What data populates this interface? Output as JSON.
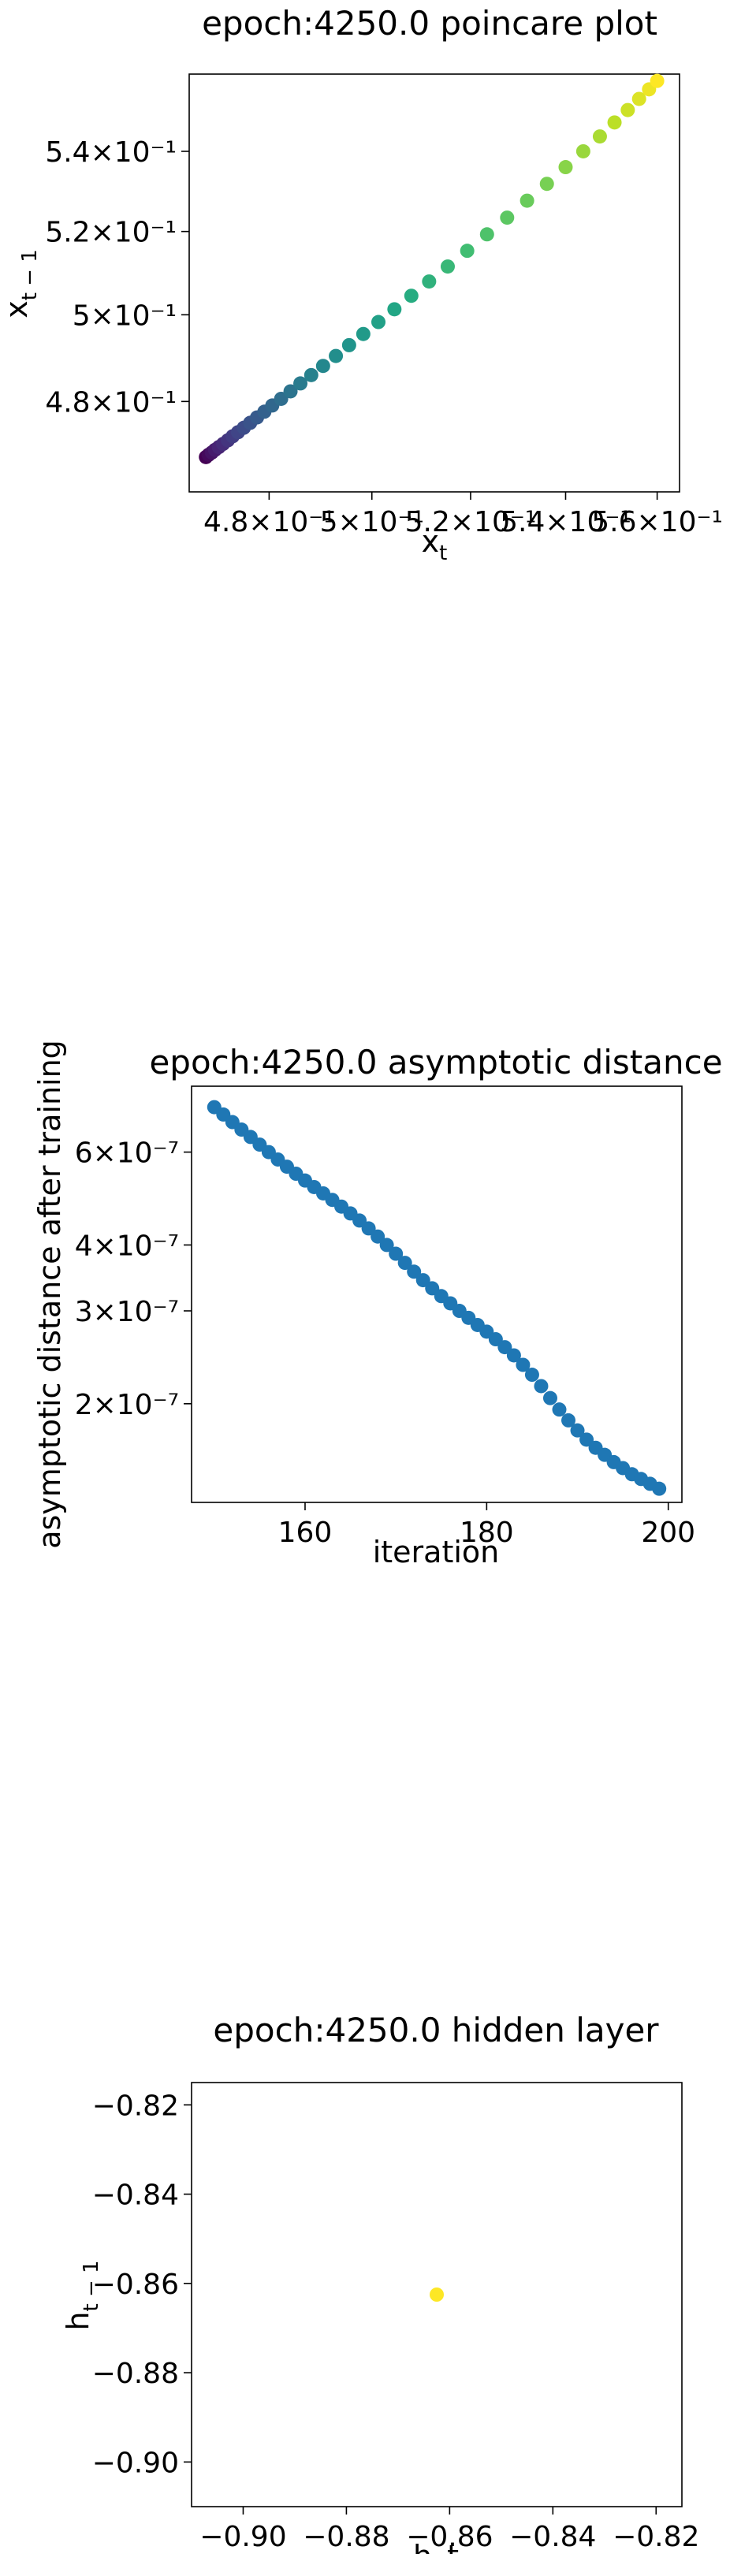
{
  "chart_data": [
    {
      "type": "scatter",
      "title": "epoch:4250.0 poincare plot",
      "xlabel": "x_t",
      "ylabel": "x_{t-1}",
      "xscale": "log",
      "yscale": "log",
      "xlim": [
        0.465,
        0.565
      ],
      "ylim": [
        0.46,
        0.56
      ],
      "xticks": [
        {
          "value": 0.48,
          "label": "4.8×10⁻¹"
        },
        {
          "value": 0.5,
          "label": "5×10⁻¹"
        },
        {
          "value": 0.52,
          "label": "5.2×10⁻¹"
        },
        {
          "value": 0.54,
          "label": "5.4×10⁻¹"
        },
        {
          "value": 0.56,
          "label": "5.6×10⁻¹"
        }
      ],
      "yticks": [
        {
          "value": 0.48,
          "label": "4.8×10⁻¹"
        },
        {
          "value": 0.5,
          "label": "5×10⁻¹"
        },
        {
          "value": 0.52,
          "label": "5.2×10⁻¹"
        },
        {
          "value": 0.54,
          "label": "5.4×10⁻¹"
        }
      ],
      "colormap": "viridis",
      "x": [
        0.4681,
        0.4686,
        0.4692,
        0.4698,
        0.4705,
        0.4713,
        0.4722,
        0.4731,
        0.4741,
        0.4752,
        0.4764,
        0.4777,
        0.4791,
        0.4806,
        0.4823,
        0.4841,
        0.486,
        0.4881,
        0.4904,
        0.4929,
        0.4955,
        0.4983,
        0.5013,
        0.5045,
        0.5079,
        0.5115,
        0.5153,
        0.5193,
        0.5234,
        0.5276,
        0.5318,
        0.536,
        0.54,
        0.5438,
        0.5474,
        0.5506,
        0.5535,
        0.556,
        0.5582,
        0.56
      ],
      "y": [
        0.4676,
        0.4681,
        0.4686,
        0.4692,
        0.4698,
        0.4705,
        0.4713,
        0.4722,
        0.4731,
        0.4741,
        0.4752,
        0.4764,
        0.4777,
        0.4791,
        0.4806,
        0.4823,
        0.4841,
        0.486,
        0.4881,
        0.4904,
        0.4929,
        0.4955,
        0.4983,
        0.5013,
        0.5045,
        0.5079,
        0.5115,
        0.5153,
        0.5193,
        0.5234,
        0.5276,
        0.5318,
        0.536,
        0.54,
        0.5438,
        0.5474,
        0.5506,
        0.5535,
        0.556,
        0.5582
      ]
    },
    {
      "type": "scatter",
      "title": "epoch:4250.0 asymptotic distance",
      "xlabel": "iteration",
      "ylabel": "asymptotic distance after training",
      "yscale": "log",
      "xlim": [
        147.5,
        201.5
      ],
      "ylim": [
        1.3e-07,
        8e-07
      ],
      "xticks": [
        {
          "value": 160,
          "label": "160"
        },
        {
          "value": 180,
          "label": "180"
        },
        {
          "value": 200,
          "label": "200"
        }
      ],
      "yticks": [
        {
          "value": 2e-07,
          "label": "2×10⁻⁷"
        },
        {
          "value": 3e-07,
          "label": "3×10⁻⁷"
        },
        {
          "value": 4e-07,
          "label": "4×10⁻⁷"
        },
        {
          "value": 6e-07,
          "label": "6×10⁻⁷"
        }
      ],
      "color": "#1f77b4",
      "x": [
        150,
        151,
        152,
        153,
        154,
        155,
        156,
        157,
        158,
        159,
        160,
        161,
        162,
        163,
        164,
        165,
        166,
        167,
        168,
        169,
        170,
        171,
        172,
        173,
        174,
        175,
        176,
        177,
        178,
        179,
        180,
        181,
        182,
        183,
        184,
        185,
        186,
        187,
        188,
        189,
        190,
        191,
        192,
        193,
        194,
        195,
        196,
        197,
        198,
        199
      ],
      "y": [
        7.3e-07,
        7.07e-07,
        6.84e-07,
        6.62e-07,
        6.41e-07,
        6.2e-07,
        6e-07,
        5.81e-07,
        5.63e-07,
        5.46e-07,
        5.3e-07,
        5.15e-07,
        5.01e-07,
        4.87e-07,
        4.73e-07,
        4.59e-07,
        4.45e-07,
        4.3e-07,
        4.15e-07,
        4e-07,
        3.85e-07,
        3.7e-07,
        3.56e-07,
        3.43e-07,
        3.31e-07,
        3.2e-07,
        3.1e-07,
        3e-07,
        2.91e-07,
        2.82e-07,
        2.74e-07,
        2.65e-07,
        2.56e-07,
        2.47e-07,
        2.37e-07,
        2.27e-07,
        2.16e-07,
        2.05e-07,
        1.95e-07,
        1.86e-07,
        1.78e-07,
        1.71e-07,
        1.65e-07,
        1.6e-07,
        1.55e-07,
        1.51e-07,
        1.47e-07,
        1.44e-07,
        1.41e-07,
        1.38e-07
      ]
    },
    {
      "type": "scatter",
      "title": "epoch:4250.0 hidden layer",
      "xlabel": "h_t",
      "ylabel": "h_{t-1}",
      "xlim": [
        -0.91,
        -0.815
      ],
      "ylim": [
        -0.91,
        -0.815
      ],
      "xticks": [
        {
          "value": -0.9,
          "label": "−0.90"
        },
        {
          "value": -0.88,
          "label": "−0.88"
        },
        {
          "value": -0.86,
          "label": "−0.86"
        },
        {
          "value": -0.84,
          "label": "−0.84"
        },
        {
          "value": -0.82,
          "label": "−0.82"
        }
      ],
      "yticks": [
        {
          "value": -0.82,
          "label": "−0.82"
        },
        {
          "value": -0.84,
          "label": "−0.84"
        },
        {
          "value": -0.86,
          "label": "−0.86"
        },
        {
          "value": -0.88,
          "label": "−0.88"
        },
        {
          "value": -0.9,
          "label": "−0.90"
        }
      ],
      "color": "#fde725",
      "x": [
        -0.8625
      ],
      "y": [
        -0.8625
      ]
    }
  ]
}
